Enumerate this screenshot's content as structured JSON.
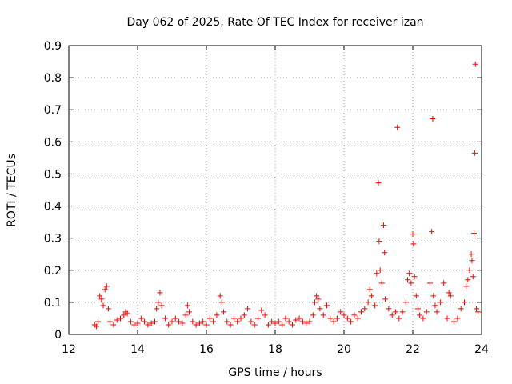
{
  "chart_data": {
    "type": "scatter",
    "title": "Day 062 of 2025, Rate Of TEC Index for receiver izan",
    "xlabel": "GPS time / hours",
    "ylabel": "ROTI / TECUs",
    "xlim": [
      12,
      24
    ],
    "ylim": [
      0,
      0.9
    ],
    "x_ticks": [
      "12",
      "14",
      "16",
      "18",
      "20",
      "22",
      "24"
    ],
    "y_ticks": [
      "0",
      "0.1",
      "0.2",
      "0.3",
      "0.4",
      "0.5",
      "0.6",
      "0.7",
      "0.8",
      "0.9"
    ],
    "grid": true,
    "marker": "plus",
    "color": "#ff0000",
    "series": [
      {
        "name": "ROTI",
        "points": [
          [
            12.75,
            0.03
          ],
          [
            12.8,
            0.025
          ],
          [
            12.85,
            0.04
          ],
          [
            12.9,
            0.12
          ],
          [
            12.95,
            0.11
          ],
          [
            13.0,
            0.09
          ],
          [
            13.05,
            0.14
          ],
          [
            13.1,
            0.15
          ],
          [
            13.15,
            0.08
          ],
          [
            13.2,
            0.04
          ],
          [
            13.3,
            0.03
          ],
          [
            13.4,
            0.045
          ],
          [
            13.5,
            0.05
          ],
          [
            13.6,
            0.06
          ],
          [
            13.65,
            0.07
          ],
          [
            13.7,
            0.065
          ],
          [
            13.8,
            0.04
          ],
          [
            13.9,
            0.03
          ],
          [
            14.0,
            0.035
          ],
          [
            14.1,
            0.05
          ],
          [
            14.2,
            0.04
          ],
          [
            14.3,
            0.03
          ],
          [
            14.4,
            0.035
          ],
          [
            14.5,
            0.04
          ],
          [
            14.55,
            0.08
          ],
          [
            14.6,
            0.1
          ],
          [
            14.65,
            0.13
          ],
          [
            14.7,
            0.09
          ],
          [
            14.8,
            0.05
          ],
          [
            14.9,
            0.03
          ],
          [
            15.0,
            0.04
          ],
          [
            15.1,
            0.05
          ],
          [
            15.2,
            0.04
          ],
          [
            15.3,
            0.035
          ],
          [
            15.4,
            0.06
          ],
          [
            15.45,
            0.09
          ],
          [
            15.5,
            0.07
          ],
          [
            15.6,
            0.04
          ],
          [
            15.7,
            0.03
          ],
          [
            15.8,
            0.035
          ],
          [
            15.9,
            0.04
          ],
          [
            16.0,
            0.03
          ],
          [
            16.1,
            0.05
          ],
          [
            16.2,
            0.04
          ],
          [
            16.3,
            0.06
          ],
          [
            16.4,
            0.12
          ],
          [
            16.45,
            0.1
          ],
          [
            16.5,
            0.07
          ],
          [
            16.6,
            0.04
          ],
          [
            16.7,
            0.03
          ],
          [
            16.8,
            0.05
          ],
          [
            16.9,
            0.04
          ],
          [
            17.0,
            0.05
          ],
          [
            17.1,
            0.06
          ],
          [
            17.2,
            0.08
          ],
          [
            17.3,
            0.04
          ],
          [
            17.4,
            0.03
          ],
          [
            17.5,
            0.05
          ],
          [
            17.6,
            0.075
          ],
          [
            17.7,
            0.06
          ],
          [
            17.8,
            0.03
          ],
          [
            17.9,
            0.04
          ],
          [
            18.0,
            0.035
          ],
          [
            18.1,
            0.04
          ],
          [
            18.2,
            0.03
          ],
          [
            18.3,
            0.05
          ],
          [
            18.4,
            0.04
          ],
          [
            18.5,
            0.03
          ],
          [
            18.6,
            0.045
          ],
          [
            18.7,
            0.05
          ],
          [
            18.8,
            0.04
          ],
          [
            18.9,
            0.035
          ],
          [
            19.0,
            0.04
          ],
          [
            19.1,
            0.06
          ],
          [
            19.15,
            0.1
          ],
          [
            19.2,
            0.12
          ],
          [
            19.25,
            0.11
          ],
          [
            19.3,
            0.08
          ],
          [
            19.4,
            0.06
          ],
          [
            19.5,
            0.09
          ],
          [
            19.6,
            0.05
          ],
          [
            19.7,
            0.04
          ],
          [
            19.8,
            0.05
          ],
          [
            19.9,
            0.07
          ],
          [
            20.0,
            0.06
          ],
          [
            20.1,
            0.05
          ],
          [
            20.2,
            0.04
          ],
          [
            20.3,
            0.06
          ],
          [
            20.4,
            0.05
          ],
          [
            20.5,
            0.07
          ],
          [
            20.6,
            0.08
          ],
          [
            20.7,
            0.1
          ],
          [
            20.75,
            0.14
          ],
          [
            20.8,
            0.12
          ],
          [
            20.9,
            0.09
          ],
          [
            20.95,
            0.19
          ],
          [
            21.0,
            0.472
          ],
          [
            21.02,
            0.29
          ],
          [
            21.05,
            0.2
          ],
          [
            21.1,
            0.16
          ],
          [
            21.15,
            0.34
          ],
          [
            21.18,
            0.255
          ],
          [
            21.2,
            0.11
          ],
          [
            21.3,
            0.08
          ],
          [
            21.4,
            0.06
          ],
          [
            21.5,
            0.07
          ],
          [
            21.55,
            0.645
          ],
          [
            21.6,
            0.05
          ],
          [
            21.7,
            0.07
          ],
          [
            21.8,
            0.1
          ],
          [
            21.85,
            0.17
          ],
          [
            21.9,
            0.19
          ],
          [
            21.95,
            0.16
          ],
          [
            22.0,
            0.313
          ],
          [
            22.02,
            0.282
          ],
          [
            22.05,
            0.18
          ],
          [
            22.1,
            0.12
          ],
          [
            22.15,
            0.08
          ],
          [
            22.2,
            0.06
          ],
          [
            22.3,
            0.05
          ],
          [
            22.4,
            0.07
          ],
          [
            22.5,
            0.16
          ],
          [
            22.55,
            0.32
          ],
          [
            22.58,
            0.672
          ],
          [
            22.6,
            0.12
          ],
          [
            22.65,
            0.09
          ],
          [
            22.7,
            0.07
          ],
          [
            22.8,
            0.1
          ],
          [
            22.9,
            0.16
          ],
          [
            23.0,
            0.05
          ],
          [
            23.05,
            0.13
          ],
          [
            23.1,
            0.12
          ],
          [
            23.2,
            0.04
          ],
          [
            23.3,
            0.05
          ],
          [
            23.4,
            0.08
          ],
          [
            23.5,
            0.1
          ],
          [
            23.55,
            0.15
          ],
          [
            23.6,
            0.17
          ],
          [
            23.65,
            0.2
          ],
          [
            23.7,
            0.25
          ],
          [
            23.72,
            0.23
          ],
          [
            23.75,
            0.18
          ],
          [
            23.78,
            0.315
          ],
          [
            23.8,
            0.565
          ],
          [
            23.82,
            0.842
          ],
          [
            23.85,
            0.08
          ],
          [
            23.9,
            0.07
          ]
        ]
      }
    ]
  }
}
